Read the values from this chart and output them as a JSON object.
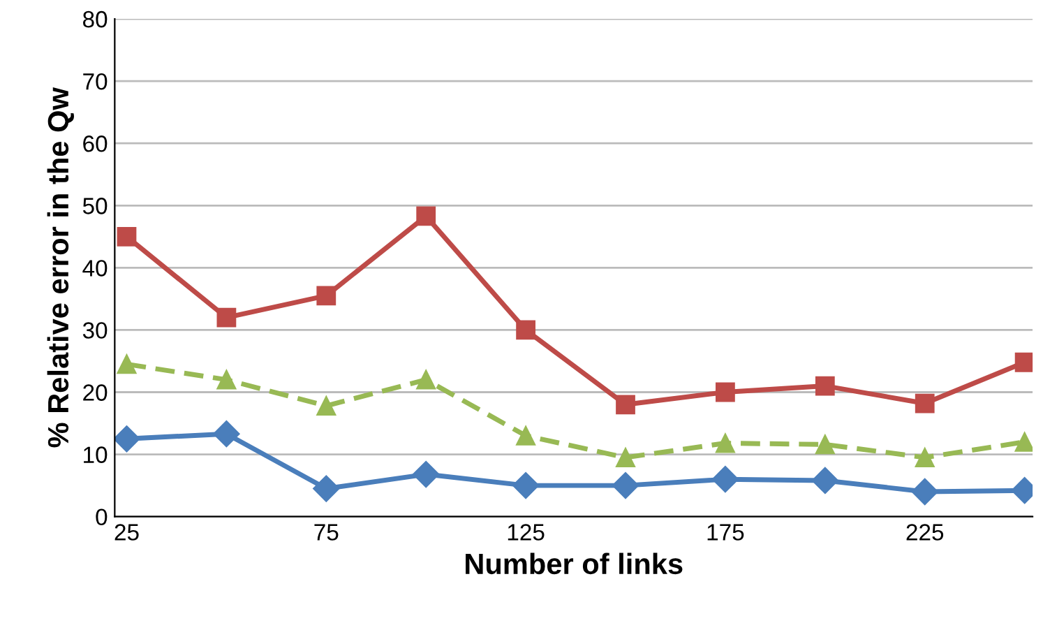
{
  "chart_data": {
    "type": "line",
    "xlabel": "Number of links",
    "ylabel": "% Relative error in the Qw",
    "x": [
      25,
      50,
      75,
      100,
      125,
      150,
      175,
      200,
      225,
      250
    ],
    "xlim": [
      22,
      252
    ],
    "xticks": [
      25,
      75,
      125,
      175,
      225
    ],
    "ylim": [
      0,
      80
    ],
    "yticks": [
      0,
      10,
      20,
      30,
      40,
      50,
      60,
      70,
      80
    ],
    "grid": "y",
    "legend": false,
    "series": [
      {
        "color": "#4a7ebb",
        "marker": "diamond",
        "line_style": "solid",
        "values": [
          12.5,
          13.3,
          4.5,
          6.8,
          5,
          5,
          6,
          5.8,
          4,
          4.2
        ]
      },
      {
        "color": "#be4b48",
        "marker": "square",
        "line_style": "solid",
        "values": [
          45,
          32,
          35.5,
          48.3,
          30,
          18,
          20,
          21,
          18.2,
          24.8
        ]
      },
      {
        "color": "#98b954",
        "marker": "triangle",
        "line_style": "dashed",
        "values": [
          24.5,
          22,
          17.8,
          22,
          13,
          9.5,
          11.8,
          11.6,
          9.5,
          12
        ]
      }
    ]
  }
}
